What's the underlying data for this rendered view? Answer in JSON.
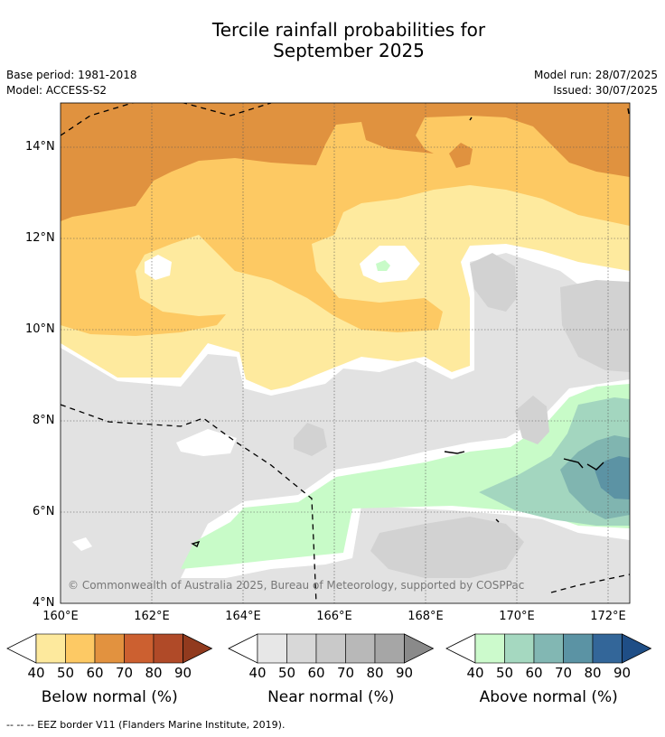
{
  "title_line1": "Tercile rainfall probabilities for",
  "title_line2": "September 2025",
  "base_period": "Base period: 1981-2018",
  "model": "Model: ACCESS-S2",
  "model_run": "Model run: 28/07/2025",
  "issued": "Issued: 30/07/2025",
  "lat_labels": [
    "14°N",
    "12°N",
    "10°N",
    "8°N",
    "6°N",
    "4°N"
  ],
  "lon_labels": [
    "160°E",
    "162°E",
    "164°E",
    "166°E",
    "168°E",
    "170°E",
    "172°E"
  ],
  "credit": "© Commonwealth of Australia 2025, Bureau of Meteorology, supported by COSPPac",
  "colorbars": [
    {
      "label": "Below normal (%)",
      "ticks": [
        "40",
        "50",
        "60",
        "70",
        "80",
        "90"
      ],
      "colors": [
        "#fde99d",
        "#fdc964",
        "#e2923f",
        "#cc6030",
        "#b04a28",
        "#913a1e"
      ]
    },
    {
      "label": "Near normal (%)",
      "ticks": [
        "40",
        "50",
        "60",
        "70",
        "80",
        "90"
      ],
      "colors": [
        "#e7e7e7",
        "#d8d8d8",
        "#c9c9c9",
        "#b8b8b8",
        "#a6a6a6",
        "#8a8a8a"
      ]
    },
    {
      "label": "Above normal (%)",
      "ticks": [
        "40",
        "50",
        "60",
        "70",
        "80",
        "90"
      ],
      "colors": [
        "#ccfacc",
        "#a5d8c0",
        "#82b7b3",
        "#5b93a4",
        "#336699",
        "#1f4e86"
      ]
    }
  ],
  "footnote": "--  --  -- EEZ border V11 (Flanders Marine Institute, 2019)."
}
